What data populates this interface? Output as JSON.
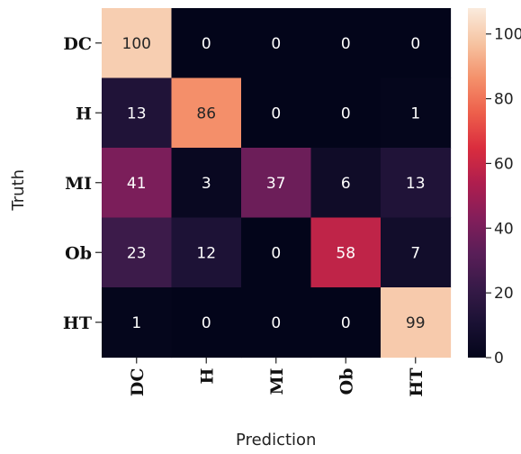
{
  "chart_data": {
    "type": "heatmap",
    "title": "",
    "xlabel": "Prediction",
    "ylabel": "Truth",
    "rows": [
      "DC",
      "H",
      "MI",
      "Ob",
      "HT"
    ],
    "columns": [
      "DC",
      "H",
      "MI",
      "Ob",
      "HT"
    ],
    "values": [
      [
        100,
        0,
        0,
        0,
        0
      ],
      [
        13,
        86,
        0,
        0,
        1
      ],
      [
        41,
        3,
        37,
        6,
        13
      ],
      [
        23,
        12,
        0,
        58,
        7
      ],
      [
        1,
        0,
        0,
        0,
        99
      ]
    ],
    "colorbar": {
      "range": [
        0,
        108
      ],
      "ticks": [
        "0",
        "20",
        "40",
        "60",
        "80",
        "100"
      ],
      "colormap": "rocket"
    }
  }
}
